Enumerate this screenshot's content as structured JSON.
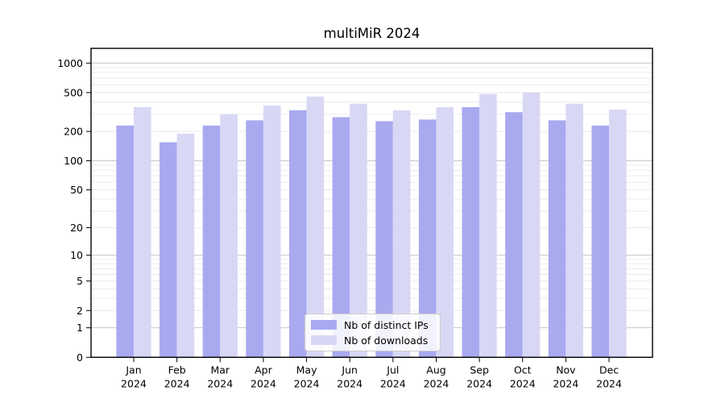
{
  "chart_data": {
    "type": "bar",
    "title": "multiMiR 2024",
    "categories": [
      "Jan",
      "Feb",
      "Mar",
      "Apr",
      "May",
      "Jun",
      "Jul",
      "Aug",
      "Sep",
      "Oct",
      "Nov",
      "Dec"
    ],
    "year_label": "2024",
    "series": [
      {
        "name": "Nb of distinct IPs",
        "color": "#a9a9f0",
        "values": [
          230,
          155,
          230,
          260,
          330,
          280,
          255,
          265,
          355,
          315,
          260,
          230
        ]
      },
      {
        "name": "Nb of downloads",
        "color": "#d8d8f5",
        "values": [
          355,
          190,
          300,
          370,
          455,
          385,
          330,
          355,
          485,
          500,
          385,
          335
        ]
      }
    ],
    "y_axis": {
      "scale": "log10(1+y)",
      "ticks": [
        0,
        1,
        2,
        5,
        10,
        20,
        50,
        100,
        200,
        500,
        1000
      ],
      "tick_labels": [
        "0",
        "1",
        "2",
        "5",
        "10",
        "20",
        "50",
        "100",
        "200",
        "500",
        "1000"
      ],
      "range_top_value": 1400
    },
    "grid": {
      "major": [
        1,
        10,
        100,
        1000
      ],
      "minor": [
        2,
        3,
        4,
        5,
        6,
        7,
        8,
        9,
        20,
        30,
        40,
        50,
        60,
        70,
        80,
        90,
        200,
        300,
        400,
        500,
        600,
        700,
        800,
        900
      ],
      "major_color": "#c6c6c6",
      "minor_color": "#eaeaea"
    },
    "legend": {
      "position": "lower-center"
    },
    "axis_color": "#000000",
    "text_color": "#000000"
  }
}
